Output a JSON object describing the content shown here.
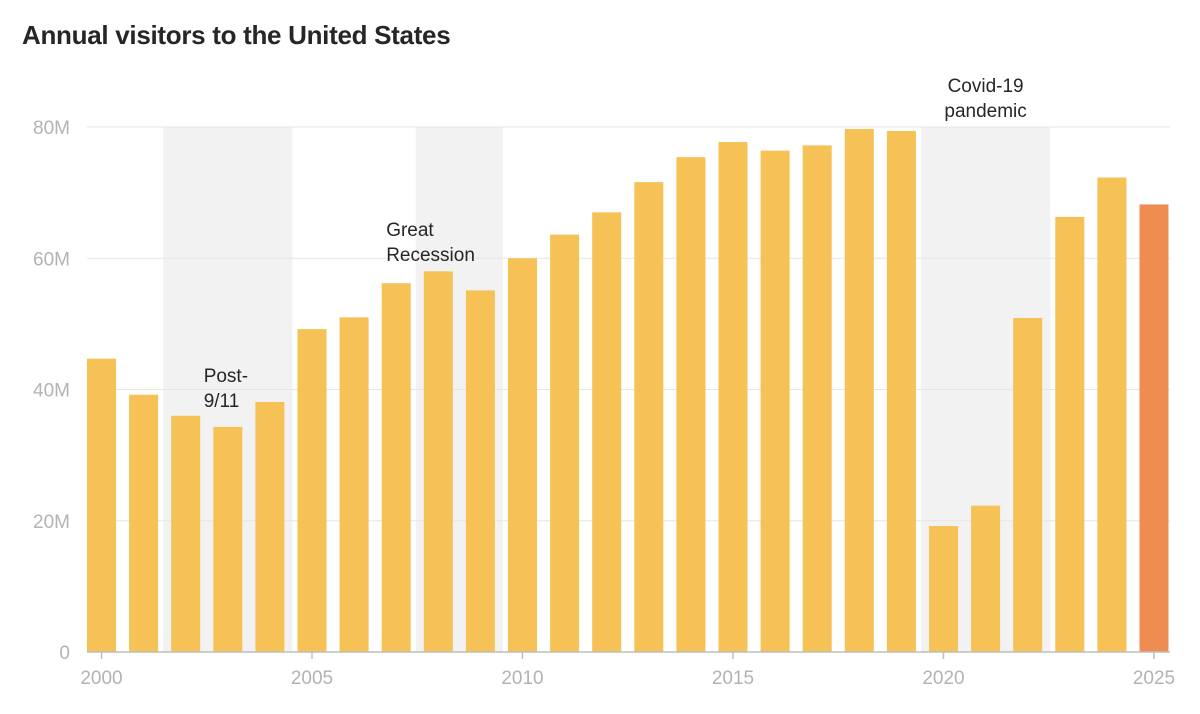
{
  "chart_data": {
    "type": "bar",
    "title": "Annual visitors to the United States",
    "xlabel": "",
    "ylabel": "",
    "x": [
      2000,
      2001,
      2002,
      2003,
      2004,
      2005,
      2006,
      2007,
      2008,
      2009,
      2010,
      2011,
      2012,
      2013,
      2014,
      2015,
      2016,
      2017,
      2018,
      2019,
      2020,
      2021,
      2022,
      2023,
      2024,
      2025
    ],
    "values": [
      44.7,
      39.2,
      36.0,
      34.3,
      38.1,
      49.2,
      51.0,
      56.2,
      58.0,
      55.1,
      60.0,
      63.6,
      67.0,
      71.6,
      75.4,
      77.7,
      76.4,
      77.2,
      79.7,
      79.4,
      19.2,
      22.3,
      50.9,
      66.3,
      72.3,
      68.2
    ],
    "ylim": [
      0,
      80
    ],
    "y_ticks": [
      {
        "value": 0,
        "label": "0"
      },
      {
        "value": 20,
        "label": "20M"
      },
      {
        "value": 40,
        "label": "40M"
      },
      {
        "value": 60,
        "label": "60M"
      },
      {
        "value": 80,
        "label": "80M"
      }
    ],
    "x_ticks": [
      {
        "value": 2000,
        "label": "2000"
      },
      {
        "value": 2005,
        "label": "2005"
      },
      {
        "value": 2010,
        "label": "2010"
      },
      {
        "value": 2015,
        "label": "2015"
      },
      {
        "value": 2020,
        "label": "2020"
      },
      {
        "value": 2025,
        "label": "2025"
      }
    ],
    "grid": true,
    "highlight_ranges": [
      {
        "start": 2002,
        "end": 2004,
        "label_lines": [
          "Post-",
          "9/11"
        ]
      },
      {
        "start": 2008,
        "end": 2009,
        "label_lines": [
          "Great",
          "Recession"
        ]
      },
      {
        "start": 2020,
        "end": 2022,
        "label_lines": [
          "Covid-19",
          "pandemic"
        ]
      }
    ],
    "colors": {
      "bar": "#f6c155",
      "highlight_bar": "#ef8c52",
      "shade": "#f2f2f2",
      "grid": "#e6e6e6",
      "axis": "#bdbdbd",
      "tick_text": "#b3b3b3",
      "annotation_text": "#262626"
    },
    "highlight_bar_x": 2025
  }
}
